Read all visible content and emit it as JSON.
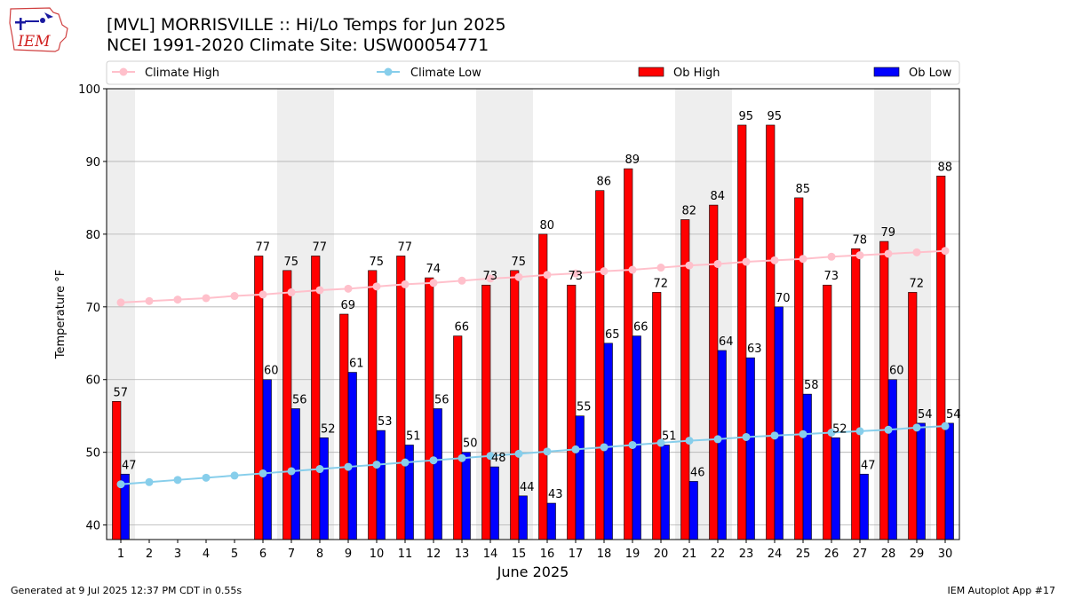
{
  "header": {
    "logo_text": "IEM",
    "title_line1": "[MVL] MORRISVILLE :: Hi/Lo Temps for Jun 2025",
    "title_line2": "NCEI 1991-2020 Climate Site: USW00054771"
  },
  "footer": {
    "left": "Generated at 9 Jul 2025 12:37 PM CDT in 0.55s",
    "right": "IEM Autoplot App #17"
  },
  "colors": {
    "ob_high": "#ff0000",
    "ob_low": "#0000ff",
    "climate_high": "#ffc0cb",
    "climate_low": "#87ceeb",
    "weekend_shade": "#eeeeee",
    "grid": "#b0b0b0"
  },
  "chart_data": {
    "type": "bar",
    "xlabel": "June 2025",
    "ylabel": "Temperature °F",
    "ylim": [
      38,
      100
    ],
    "yticks": [
      40,
      50,
      60,
      70,
      80,
      90,
      100
    ],
    "grid": "horizontal",
    "legend_position": "top",
    "categories": [
      "1",
      "2",
      "3",
      "4",
      "5",
      "6",
      "7",
      "8",
      "9",
      "10",
      "11",
      "12",
      "13",
      "14",
      "15",
      "16",
      "17",
      "18",
      "19",
      "20",
      "21",
      "22",
      "23",
      "24",
      "25",
      "26",
      "27",
      "28",
      "29",
      "30"
    ],
    "weekend_days": [
      1,
      7,
      8,
      14,
      15,
      21,
      22,
      28,
      29
    ],
    "series": [
      {
        "name": "Climate High",
        "kind": "line",
        "values": [
          70.6,
          70.8,
          71.0,
          71.2,
          71.5,
          71.7,
          72.0,
          72.3,
          72.5,
          72.8,
          73.1,
          73.3,
          73.6,
          73.9,
          74.1,
          74.4,
          74.6,
          74.9,
          75.1,
          75.4,
          75.7,
          75.9,
          76.2,
          76.4,
          76.6,
          76.9,
          77.1,
          77.3,
          77.5,
          77.7
        ]
      },
      {
        "name": "Climate Low",
        "kind": "line",
        "values": [
          45.6,
          45.9,
          46.2,
          46.5,
          46.8,
          47.1,
          47.4,
          47.7,
          48.0,
          48.3,
          48.6,
          48.9,
          49.2,
          49.5,
          49.8,
          50.1,
          50.4,
          50.7,
          51.0,
          51.3,
          51.6,
          51.8,
          52.1,
          52.3,
          52.5,
          52.7,
          52.9,
          53.1,
          53.4,
          53.6
        ]
      },
      {
        "name": "Ob High",
        "kind": "bar",
        "values": [
          57,
          null,
          null,
          null,
          null,
          77,
          75,
          77,
          69,
          75,
          77,
          74,
          66,
          73,
          75,
          80,
          73,
          86,
          89,
          72,
          82,
          84,
          95,
          95,
          85,
          73,
          78,
          79,
          72,
          88
        ]
      },
      {
        "name": "Ob Low",
        "kind": "bar",
        "values": [
          47,
          null,
          null,
          null,
          null,
          60,
          56,
          52,
          61,
          53,
          51,
          56,
          50,
          48,
          44,
          43,
          55,
          65,
          66,
          51,
          46,
          64,
          63,
          70,
          58,
          52,
          47,
          60,
          54,
          54
        ]
      }
    ]
  }
}
